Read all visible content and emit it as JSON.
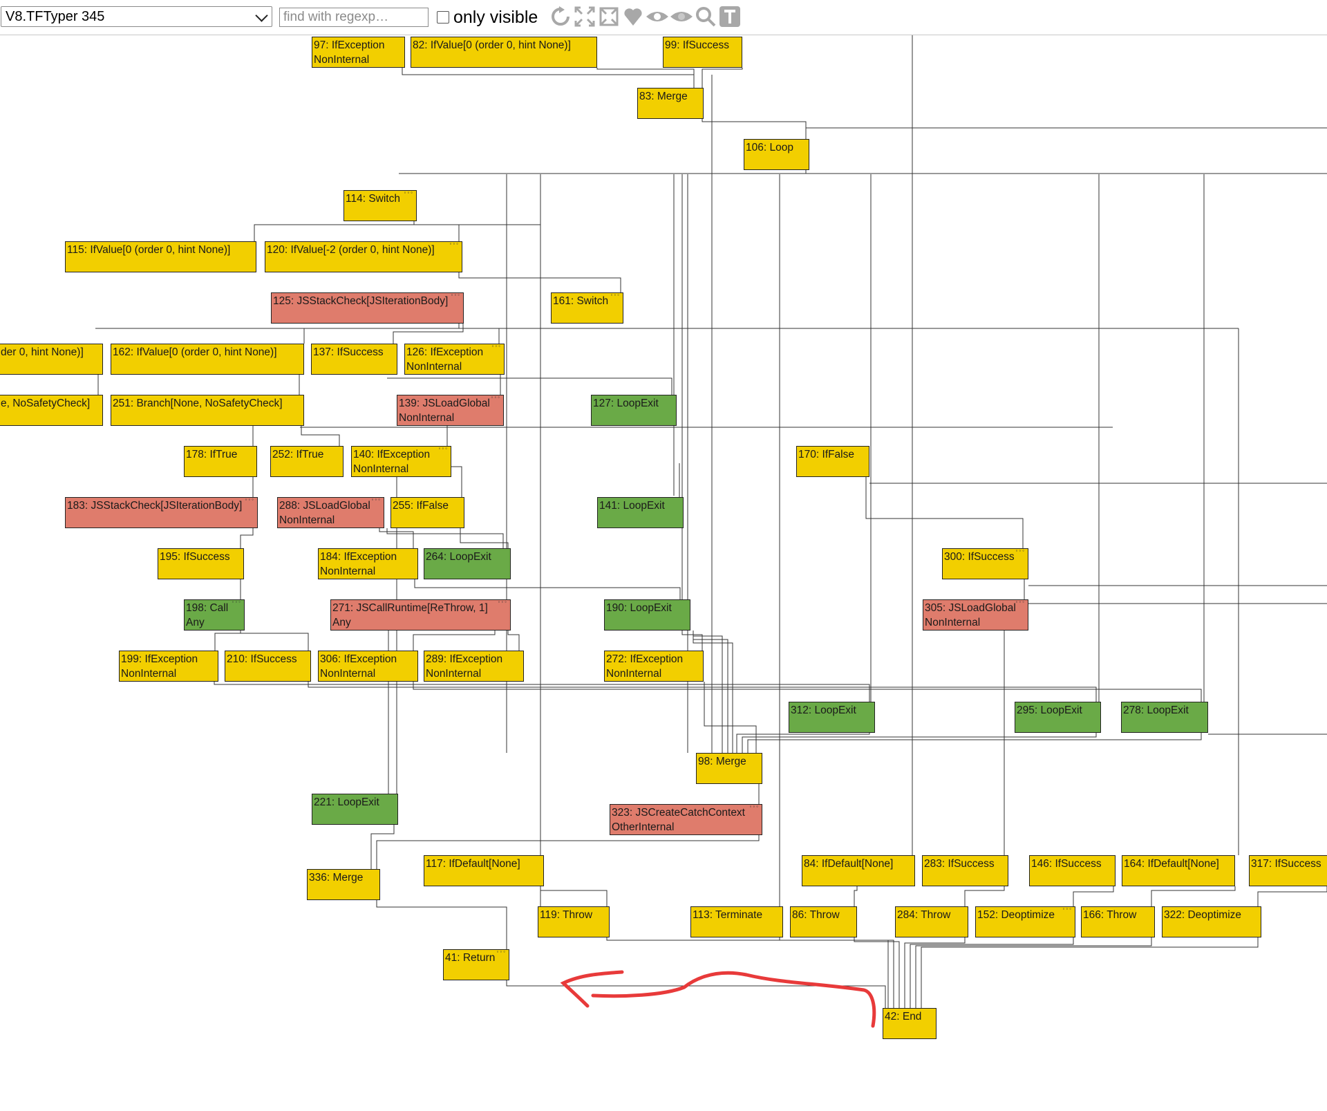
{
  "toolbar": {
    "phase_select": "V8.TFTyper 345",
    "search_placeholder": "find with regexp…",
    "only_visible_label": "only visible",
    "only_visible_checked": false,
    "icons": [
      "reload-icon",
      "expand-layout-icon",
      "collapse-layout-icon",
      "heart-icon",
      "show-eye-icon",
      "hide-eye-icon",
      "search-icon",
      "type-toggle-icon"
    ]
  },
  "colors": {
    "control": "#f2cf00",
    "loop_exit": "#6aaa47",
    "js_op": "#df7c6c",
    "annotation": "#e83a3a"
  },
  "nodes": [
    {
      "id": "97",
      "label": "97: IfException\nNonInternal",
      "kind": "control"
    },
    {
      "id": "82",
      "label": "82: IfValue[0 (order 0, hint None)]",
      "kind": "control"
    },
    {
      "id": "99",
      "label": "99: IfSuccess",
      "kind": "control"
    },
    {
      "id": "83",
      "label": "83: Merge",
      "kind": "control"
    },
    {
      "id": "106",
      "label": "106: Loop",
      "kind": "control"
    },
    {
      "id": "114",
      "label": "114: Switch",
      "kind": "control"
    },
    {
      "id": "115",
      "label": "115: IfValue[0 (order 0, hint None)]",
      "kind": "control"
    },
    {
      "id": "120",
      "label": "120: IfValue[-2 (order 0, hint None)]",
      "kind": "control"
    },
    {
      "id": "125",
      "label": "125: JSStackCheck[JSIterationBody]",
      "kind": "js"
    },
    {
      "id": "161",
      "label": "161: Switch",
      "kind": "control"
    },
    {
      "id": "x1",
      "label": "der 0, hint None)]",
      "kind": "control"
    },
    {
      "id": "162",
      "label": "162: IfValue[0 (order 0, hint None)]",
      "kind": "control"
    },
    {
      "id": "137",
      "label": "137: IfSuccess",
      "kind": "control"
    },
    {
      "id": "126",
      "label": "126: IfException\nNonInternal",
      "kind": "control"
    },
    {
      "id": "x2",
      "label": "e, NoSafetyCheck]",
      "kind": "control"
    },
    {
      "id": "251",
      "label": "251: Branch[None, NoSafetyCheck]",
      "kind": "control"
    },
    {
      "id": "139",
      "label": "139: JSLoadGlobal\nNonInternal",
      "kind": "js"
    },
    {
      "id": "127",
      "label": "127: LoopExit",
      "kind": "loopexit"
    },
    {
      "id": "178",
      "label": "178: IfTrue",
      "kind": "control"
    },
    {
      "id": "252",
      "label": "252: IfTrue",
      "kind": "control"
    },
    {
      "id": "140",
      "label": "140: IfException\nNonInternal",
      "kind": "control"
    },
    {
      "id": "170",
      "label": "170: IfFalse",
      "kind": "control"
    },
    {
      "id": "183",
      "label": "183: JSStackCheck[JSIterationBody]",
      "kind": "js"
    },
    {
      "id": "288",
      "label": "288: JSLoadGlobal\nNonInternal",
      "kind": "js"
    },
    {
      "id": "255",
      "label": "255: IfFalse",
      "kind": "control"
    },
    {
      "id": "141",
      "label": "141: LoopExit",
      "kind": "loopexit"
    },
    {
      "id": "195",
      "label": "195: IfSuccess",
      "kind": "control"
    },
    {
      "id": "184",
      "label": "184: IfException\nNonInternal",
      "kind": "control"
    },
    {
      "id": "264",
      "label": "264: LoopExit",
      "kind": "loopexit"
    },
    {
      "id": "300",
      "label": "300: IfSuccess",
      "kind": "control"
    },
    {
      "id": "198",
      "label": "198: Call\nAny",
      "kind": "loopexit"
    },
    {
      "id": "271",
      "label": "271: JSCallRuntime[ReThrow, 1]\nAny",
      "kind": "js"
    },
    {
      "id": "190",
      "label": "190: LoopExit",
      "kind": "loopexit"
    },
    {
      "id": "305",
      "label": "305: JSLoadGlobal\nNonInternal",
      "kind": "js"
    },
    {
      "id": "199",
      "label": "199: IfException\nNonInternal",
      "kind": "control"
    },
    {
      "id": "210",
      "label": "210: IfSuccess",
      "kind": "control"
    },
    {
      "id": "306",
      "label": "306: IfException\nNonInternal",
      "kind": "control"
    },
    {
      "id": "289",
      "label": "289: IfException\nNonInternal",
      "kind": "control"
    },
    {
      "id": "272",
      "label": "272: IfException\nNonInternal",
      "kind": "control"
    },
    {
      "id": "312",
      "label": "312: LoopExit",
      "kind": "loopexit"
    },
    {
      "id": "295",
      "label": "295: LoopExit",
      "kind": "loopexit"
    },
    {
      "id": "278",
      "label": "278: LoopExit",
      "kind": "loopexit"
    },
    {
      "id": "98",
      "label": "98: Merge",
      "kind": "control"
    },
    {
      "id": "221",
      "label": "221: LoopExit",
      "kind": "loopexit"
    },
    {
      "id": "323",
      "label": "323: JSCreateCatchContext\nOtherInternal",
      "kind": "js"
    },
    {
      "id": "117",
      "label": "117: IfDefault[None]",
      "kind": "control"
    },
    {
      "id": "84",
      "label": "84: IfDefault[None]",
      "kind": "control"
    },
    {
      "id": "283",
      "label": "283: IfSuccess",
      "kind": "control"
    },
    {
      "id": "146",
      "label": "146: IfSuccess",
      "kind": "control"
    },
    {
      "id": "164",
      "label": "164: IfDefault[None]",
      "kind": "control"
    },
    {
      "id": "317",
      "label": "317: IfSuccess",
      "kind": "control"
    },
    {
      "id": "336",
      "label": "336: Merge",
      "kind": "control"
    },
    {
      "id": "119",
      "label": "119: Throw",
      "kind": "control"
    },
    {
      "id": "113",
      "label": "113: Terminate",
      "kind": "control"
    },
    {
      "id": "86",
      "label": "86: Throw",
      "kind": "control"
    },
    {
      "id": "284",
      "label": "284: Throw",
      "kind": "control"
    },
    {
      "id": "152",
      "label": "152: Deoptimize",
      "kind": "control"
    },
    {
      "id": "166",
      "label": "166: Throw",
      "kind": "control"
    },
    {
      "id": "322",
      "label": "322: Deoptimize",
      "kind": "control"
    },
    {
      "id": "41",
      "label": "41: Return",
      "kind": "control"
    },
    {
      "id": "42",
      "label": "42: End",
      "kind": "control"
    }
  ],
  "dotted_nodes": [
    "125",
    "139",
    "183",
    "288",
    "198",
    "271",
    "305",
    "323",
    "161",
    "120",
    "114",
    "140",
    "126",
    "300",
    "41",
    "152"
  ]
}
